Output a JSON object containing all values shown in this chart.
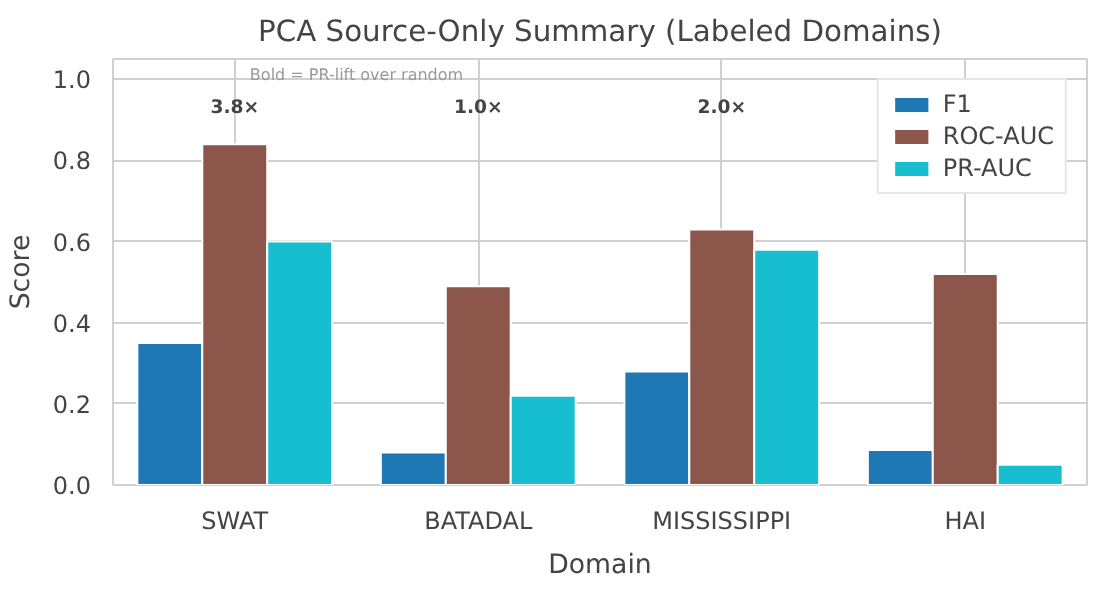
{
  "chart_data": {
    "type": "bar",
    "title": "PCA Source-Only Summary (Labeled Domains)",
    "xlabel": "Domain",
    "ylabel": "Score",
    "categories": [
      "SWAT",
      "BATADAL",
      "MISSISSIPPI",
      "HAI"
    ],
    "series": [
      {
        "name": "F1",
        "color": "#1f77b4",
        "values": [
          0.35,
          0.08,
          0.28,
          0.086
        ]
      },
      {
        "name": "ROC-AUC",
        "color": "#8c564b",
        "values": [
          0.84,
          0.49,
          0.63,
          0.52
        ]
      },
      {
        "name": "PR-AUC",
        "color": "#17becf",
        "values": [
          0.6,
          0.22,
          0.58,
          0.05
        ]
      }
    ],
    "ylim": [
      0,
      1.05
    ],
    "yticks": [
      {
        "value": 0,
        "label": "0.0"
      },
      0.2,
      0.4,
      0.6,
      0.8,
      {
        "value": 1,
        "label": "1.0"
      }
    ],
    "annotations": [
      "Bold = PR-lift over random",
      "3.8×",
      "1.0×",
      "2.0×"
    ],
    "grid": true,
    "legend": "top right"
  }
}
